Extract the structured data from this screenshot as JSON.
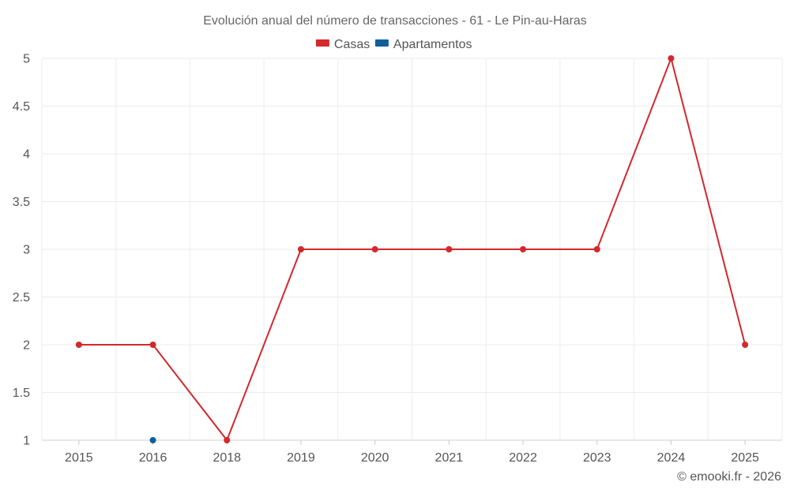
{
  "chart_data": {
    "type": "line",
    "title": "Evolución anual del número de transacciones - 61 - Le Pin-au-Haras",
    "categories": [
      "2015",
      "2016",
      "2018",
      "2019",
      "2020",
      "2021",
      "2022",
      "2023",
      "2024",
      "2025"
    ],
    "series": [
      {
        "name": "Casas",
        "color": "#d3282d",
        "values": [
          2,
          2,
          1,
          3,
          3,
          3,
          3,
          3,
          5,
          2
        ]
      },
      {
        "name": "Apartamentos",
        "color": "#0e5f9b",
        "values": [
          null,
          1,
          null,
          null,
          null,
          null,
          null,
          null,
          null,
          null
        ]
      }
    ],
    "ylim": [
      1,
      5
    ],
    "yticks": [
      1,
      1.5,
      2,
      2.5,
      3,
      3.5,
      4,
      4.5,
      5
    ],
    "ytick_labels": [
      "1",
      "1.5",
      "2",
      "2.5",
      "3",
      "3.5",
      "4",
      "4.5",
      "5"
    ],
    "xlabel": "",
    "ylabel": "",
    "grid": true,
    "legend_position": "top-center"
  },
  "footer": {
    "credit": "© emooki.fr - 2026"
  }
}
